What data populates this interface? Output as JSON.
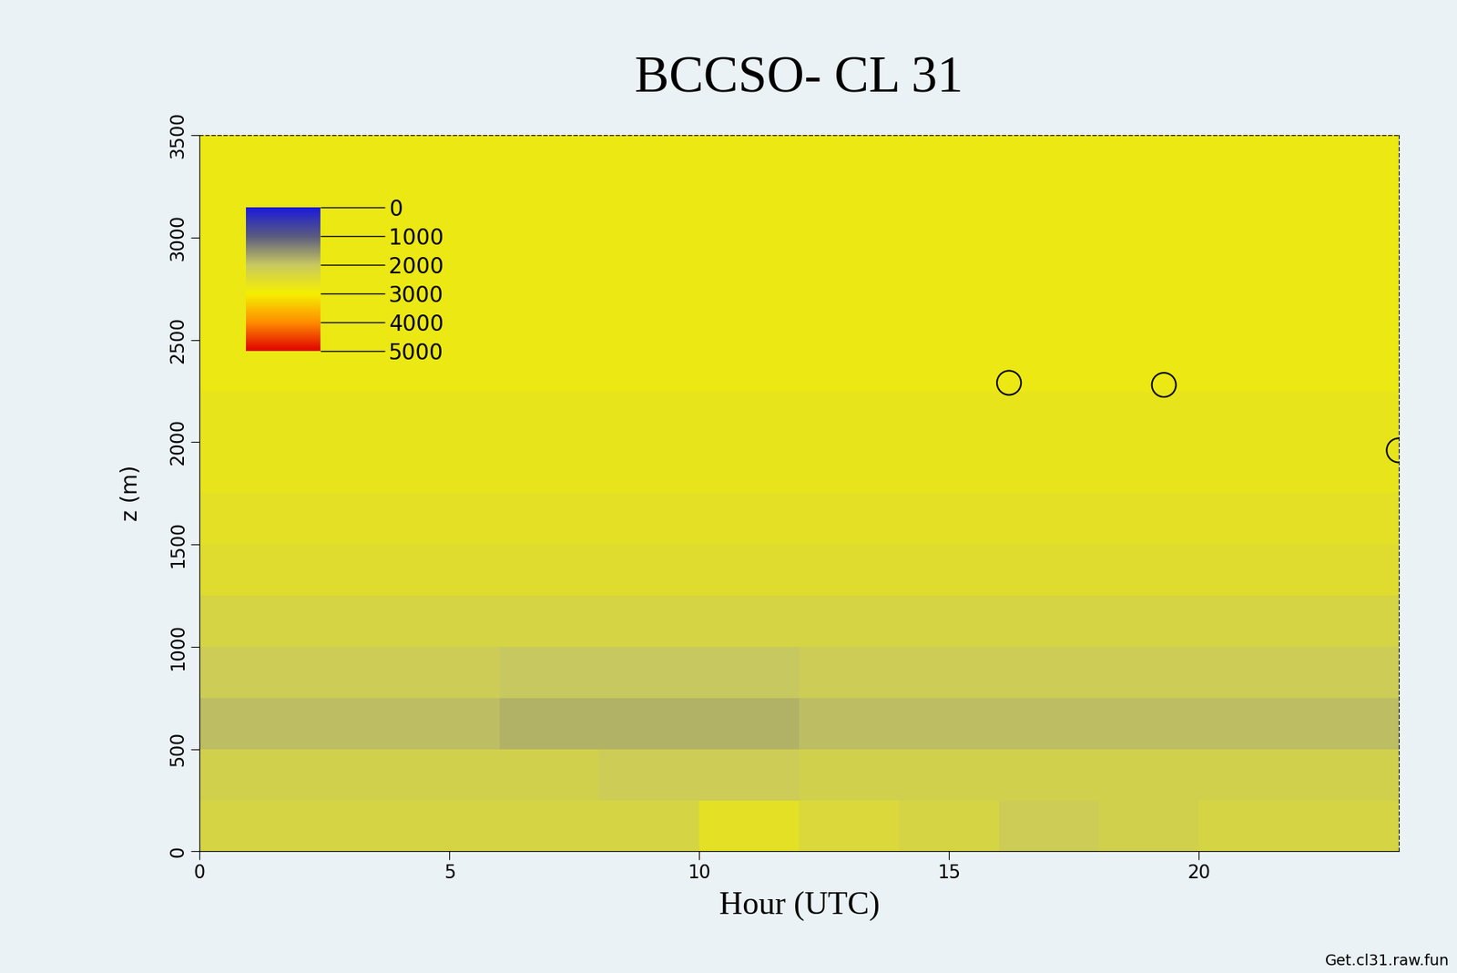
{
  "chart_data": {
    "type": "heatmap",
    "title": "BCCSO- CL 31",
    "x_label": "Hour (UTC)",
    "y_label": "z (m)",
    "x_edges": [
      0,
      2,
      4,
      6,
      8,
      10,
      12,
      14,
      16,
      18,
      20,
      22,
      24
    ],
    "y_edges": [
      0,
      250,
      500,
      750,
      1000,
      1250,
      1500,
      1750,
      2000,
      2250,
      2500,
      2750,
      3000,
      3250,
      3500
    ],
    "cells": [
      [
        2300,
        2300,
        2300,
        2300,
        2300,
        2600,
        2400,
        2300,
        2100,
        2200,
        2300,
        2300
      ],
      [
        2200,
        2200,
        2200,
        2200,
        2100,
        2100,
        2200,
        2200,
        2200,
        2200,
        2200,
        2200
      ],
      [
        1900,
        1900,
        1900,
        1800,
        1800,
        1800,
        1900,
        1900,
        1900,
        1900,
        1900,
        1900
      ],
      [
        2100,
        2100,
        2100,
        2000,
        2000,
        2000,
        2100,
        2100,
        2100,
        2100,
        2100,
        2100
      ],
      [
        2300,
        2300,
        2300,
        2300,
        2300,
        2300,
        2300,
        2300,
        2300,
        2300,
        2300,
        2300
      ],
      [
        2500,
        2500,
        2500,
        2500,
        2500,
        2500,
        2500,
        2500,
        2500,
        2500,
        2500,
        2500
      ],
      [
        2600,
        2600,
        2600,
        2600,
        2600,
        2600,
        2600,
        2600,
        2600,
        2600,
        2600,
        2600
      ],
      [
        2700,
        2700,
        2700,
        2700,
        2700,
        2700,
        2700,
        2700,
        2700,
        2700,
        2700,
        2700
      ],
      [
        2700,
        2700,
        2700,
        2700,
        2700,
        2700,
        2700,
        2700,
        2700,
        2700,
        2700,
        2700
      ],
      [
        2800,
        2800,
        2800,
        2800,
        2800,
        2800,
        2800,
        2800,
        2800,
        2800,
        2800,
        2800
      ],
      [
        2800,
        2800,
        2800,
        2800,
        2800,
        2800,
        2800,
        2800,
        2800,
        2800,
        2800,
        2800
      ],
      [
        2800,
        2800,
        2800,
        2800,
        2800,
        2800,
        2800,
        2800,
        2800,
        2800,
        2800,
        2800
      ],
      [
        2800,
        2800,
        2800,
        2800,
        2800,
        2800,
        2800,
        2800,
        2800,
        2800,
        2800,
        2800
      ],
      [
        2800,
        2800,
        2800,
        2800,
        2800,
        2800,
        2800,
        2800,
        2800,
        2800,
        2800,
        2800
      ]
    ],
    "points": {
      "x": [
        16.2,
        19.3,
        24.0
      ],
      "y": [
        2290,
        2280,
        1960
      ],
      "marker": "o",
      "color": "#000000"
    },
    "xlim": [
      0,
      24
    ],
    "xticks": [
      0,
      5,
      10,
      15,
      20
    ],
    "ylim": [
      0,
      3500
    ],
    "yticks": [
      0,
      500,
      1000,
      1500,
      2000,
      2500,
      3000,
      3500
    ],
    "colorbar_range": [
      0,
      5000
    ],
    "colorbar_ticks": [
      0,
      1000,
      2000,
      3000,
      4000,
      5000
    ],
    "note": "Get.cl31.raw.fun"
  }
}
